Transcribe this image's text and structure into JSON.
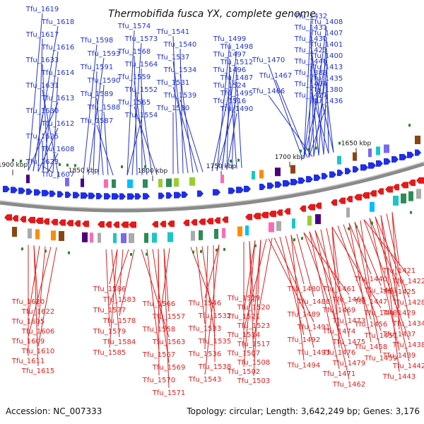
{
  "title": "Thermobifida fusca YX, complete genome",
  "footer": {
    "accession": "Accession: NC_007333",
    "summary": "Topology: circular; Length: 3,642,249 bp; Genes: 3,176"
  },
  "colors": {
    "forward_strand": "#1f2ee6",
    "reverse_strand": "#e31a1a",
    "backbone": "#8a8a8a",
    "forward_label": "#2233cc",
    "reverse_label": "#dd2020"
  },
  "ticks": [
    "1900 kbp",
    "1850 kbp",
    "1800 kbp",
    "1750 kbp",
    "1700 kbp",
    "1650 kbp"
  ],
  "forward_labels": [
    "Tfu_1619",
    "Tfu_1618",
    "Tfu_1617",
    "Tfu_1616",
    "Tfu_1633",
    "Tfu_1614",
    "Tfu_1631",
    "Tfu_1613",
    "Tfu_1630",
    "Tfu_1612",
    "Tfu_1625",
    "Tfu_1608",
    "Tfu_1623",
    "Tfu_1607",
    "Tfu_1598",
    "Tfu_1593",
    "Tfu_1591",
    "Tfu_1590",
    "Tfu_1589",
    "Tfu_1588",
    "Tfu_1587",
    "Tfu_1574",
    "Tfu_1573",
    "Tfu_1568",
    "Tfu_1564",
    "Tfu_1559",
    "Tfu_1552",
    "Tfu_1565",
    "Tfu_1554",
    "Tfu_1541",
    "Tfu_1540",
    "Tfu_1537",
    "Tfu_1534",
    "Tfu_1531",
    "Tfu_1539",
    "Tfu_1530",
    "Tfu_1499",
    "Tfu_1498",
    "Tfu_1497",
    "Tfu_1512",
    "Tfu_1496",
    "Tfu_1487",
    "Tfu_1524",
    "Tfu_1495",
    "Tfu_1516",
    "Tfu_1490",
    "Tfu_1470",
    "Tfu_1467",
    "Tfu_1466",
    "Tfu_1432",
    "Tfu_1408",
    "Tfu_1431",
    "Tfu_1407",
    "Tfu_1430",
    "Tfu_1401",
    "Tfu_1423",
    "Tfu_1400",
    "Tfu_1446",
    "Tfu_1413",
    "Tfu_1388",
    "Tfu_1435",
    "Tfu_1404",
    "Tfu_1380",
    "Tfu_1427",
    "Tfu_1436"
  ],
  "reverse_labels": [
    "Tfu_1620",
    "Tfu_1622",
    "Tfu_1605",
    "Tfu_1606",
    "Tfu_1609",
    "Tfu_1610",
    "Tfu_1611",
    "Tfu_1615",
    "Tfu_1586",
    "Tfu_1583",
    "Tfu_1577",
    "Tfu_1578",
    "Tfu_1579",
    "Tfu_1584",
    "Tfu_1585",
    "Tfu_1566",
    "Tfu_1557",
    "Tfu_1558",
    "Tfu_1563",
    "Tfu_1567",
    "Tfu_1569",
    "Tfu_1570",
    "Tfu_1571",
    "Tfu_1546",
    "Tfu_1532",
    "Tfu_1533",
    "Tfu_1535",
    "Tfu_1536",
    "Tfu_1538",
    "Tfu_1543",
    "Tfu_1529",
    "Tfu_1520",
    "Tfu_1521",
    "Tfu_1523",
    "Tfu_1514",
    "Tfu_1517",
    "Tfu_1507",
    "Tfu_1508",
    "Tfu_1502",
    "Tfu_1503",
    "Tfu_1480",
    "Tfu_1488",
    "Tfu_1489",
    "Tfu_1491",
    "Tfu_1492",
    "Tfu_1493",
    "Tfu_1494",
    "Tfu_1461",
    "Tfu_1468",
    "Tfu_1469",
    "Tfu_1473",
    "Tfu_1474",
    "Tfu_1475",
    "Tfu_1476",
    "Tfu_1479",
    "Tfu_1471",
    "Tfu_1462",
    "Tfu_1440",
    "Tfu_1441",
    "Tfu_1447",
    "Tfu_1448",
    "Tfu_1456",
    "Tfu_1457",
    "Tfu_1458",
    "Tfu_1459",
    "Tfu_1421",
    "Tfu_1422",
    "Tfu_1425",
    "Tfu_1428",
    "Tfu_1429",
    "Tfu_1434",
    "Tfu_1437",
    "Tfu_1438",
    "Tfu_1439",
    "Tfu_1442",
    "Tfu_1443"
  ]
}
